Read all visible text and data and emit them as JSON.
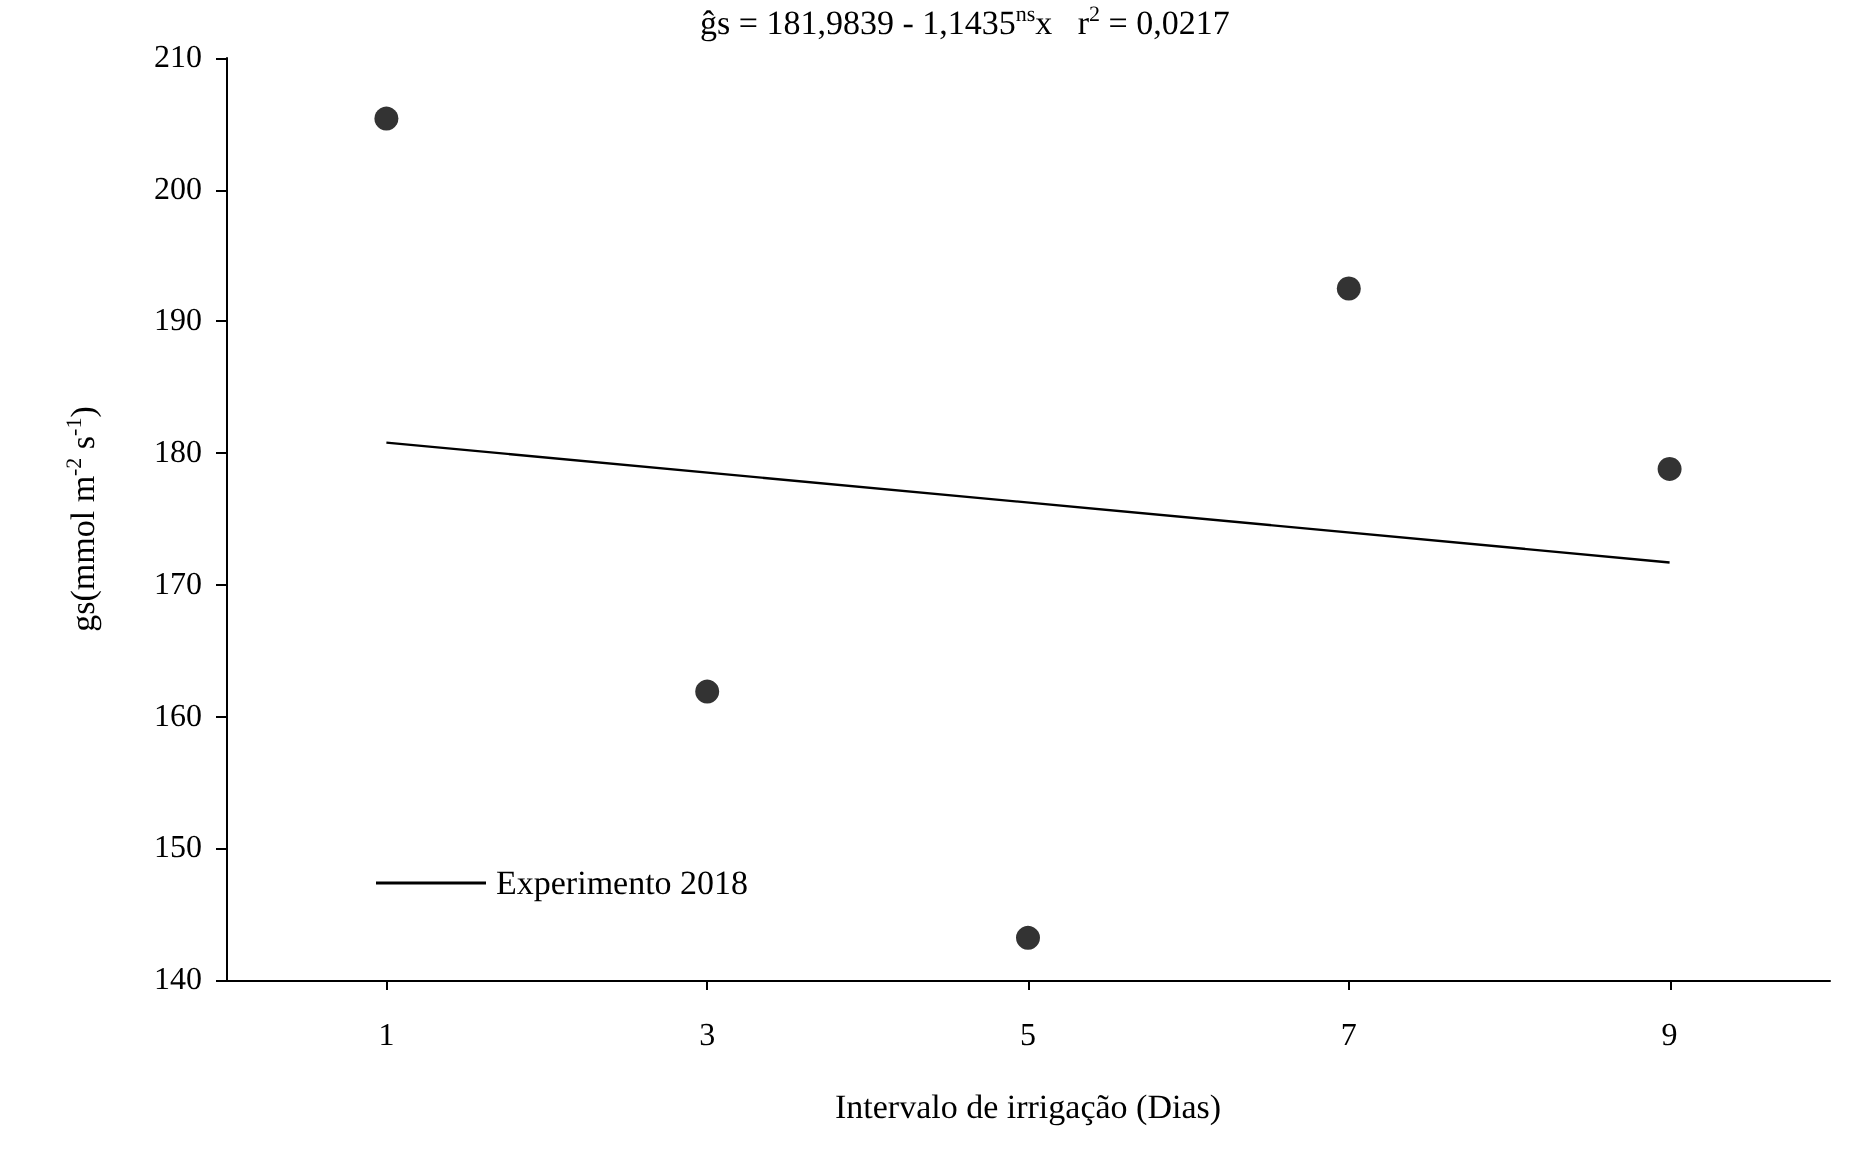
{
  "chart_data": {
    "type": "scatter",
    "xlabel": "Intervalo de irrigação (Dias)",
    "ylabel": "gs(mmol m$^{-2}$ s$^{-1}$)",
    "annotations": [
      "ĝs = 181,9839 - 1,1435$^{ns}$x   r$^{2}$ = 0,0217"
    ],
    "xlim": [
      0,
      10
    ],
    "xticks": [
      1,
      3,
      5,
      7,
      9
    ],
    "ylim": [
      140,
      210
    ],
    "yticks": [
      140,
      150,
      160,
      170,
      180,
      190,
      200,
      210
    ],
    "grid": false,
    "legend": "bottom left",
    "series": [
      {
        "type": "scatter",
        "color": "#000000",
        "marker": "circle",
        "x": [
          1,
          3,
          5,
          7,
          9
        ],
        "values": [
          205.4,
          161.9,
          143.2,
          192.5,
          178.8
        ]
      },
      {
        "type": "line",
        "name": "Experimento 2018",
        "color": "#000000",
        "marker": "none",
        "line_style": "solid",
        "x": [
          1,
          9
        ],
        "values": [
          180.8,
          171.7
        ]
      }
    ]
  }
}
